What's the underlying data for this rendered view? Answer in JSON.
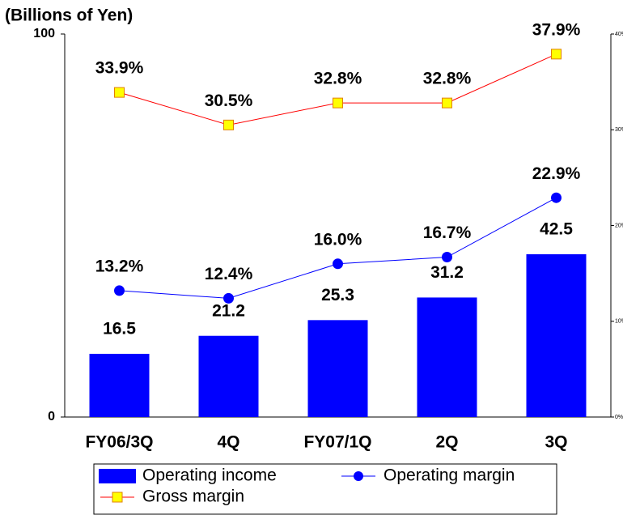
{
  "chart_data": {
    "type": "bar",
    "y_label": "(Billions of Yen)",
    "categories": [
      "FY06/3Q",
      "4Q",
      "FY07/1Q",
      "2Q",
      "3Q"
    ],
    "series": [
      {
        "name": "Operating income",
        "type": "bar",
        "color": "#0000ff",
        "values": [
          16.5,
          21.2,
          25.3,
          31.2,
          42.5
        ]
      },
      {
        "name": "Operating margin",
        "type": "line",
        "axis": "y2",
        "color": "#0000ff",
        "marker": "circle",
        "values": [
          13.2,
          12.4,
          16.0,
          16.7,
          22.9
        ],
        "value_labels": [
          "13.2%",
          "12.4%",
          "16.0%",
          "16.7%",
          "22.9%"
        ]
      },
      {
        "name": "Gross margin",
        "type": "line",
        "axis": "y2",
        "color": "#ff0000",
        "marker": "square",
        "marker_color": "#ffff00",
        "values": [
          33.9,
          30.5,
          32.8,
          32.8,
          37.9
        ],
        "value_labels": [
          "33.9%",
          "30.5%",
          "32.8%",
          "32.8%",
          "37.9%"
        ]
      }
    ],
    "ylim": [
      0,
      100
    ],
    "yticks": [
      0,
      100
    ],
    "y2lim": [
      0,
      40
    ],
    "y2ticks": [
      {
        "value": 0,
        "label": "0%"
      },
      {
        "value": 10,
        "label": "10%"
      },
      {
        "value": 20,
        "label": "20%"
      },
      {
        "value": 30,
        "label": "30%"
      },
      {
        "value": 40,
        "label": "40%"
      }
    ],
    "grid": false,
    "legend": "bottom"
  }
}
